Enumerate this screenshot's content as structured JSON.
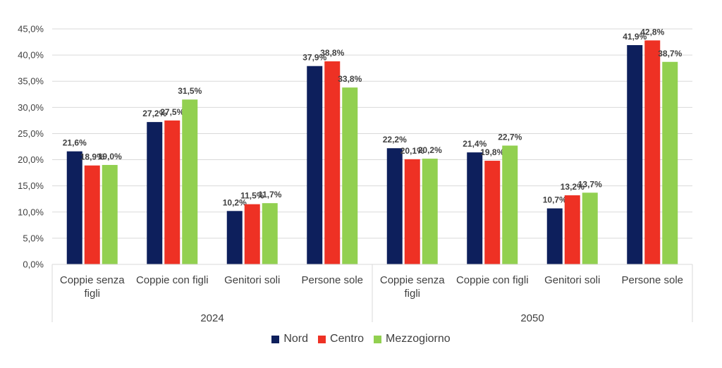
{
  "chart_data": {
    "type": "bar",
    "title": "",
    "xlabel": "",
    "ylabel": "",
    "ylim": [
      0,
      45
    ],
    "yticks": [
      "0,0%",
      "5,0%",
      "10,0%",
      "15,0%",
      "20,0%",
      "25,0%",
      "30,0%",
      "35,0%",
      "40,0%",
      "45,0%"
    ],
    "groups": [
      {
        "label": "2024",
        "categories": [
          "Coppie senza figli",
          "Coppie con figli",
          "Genitori soli",
          "Persone sole"
        ]
      },
      {
        "label": "2050",
        "categories": [
          "Coppie senza figli",
          "Coppie con figli",
          "Genitori soli",
          "Persone sole"
        ]
      }
    ],
    "category_lines": [
      [
        "Coppie senza",
        "figli"
      ],
      [
        "Coppie con figli"
      ],
      [
        "Genitori soli"
      ],
      [
        "Persone sole"
      ],
      [
        "Coppie senza",
        "figli"
      ],
      [
        "Coppie con figli"
      ],
      [
        "Genitori soli"
      ],
      [
        "Persone sole"
      ]
    ],
    "series": [
      {
        "name": "Nord",
        "color": "#0d1f5c",
        "values": [
          21.6,
          27.2,
          10.2,
          37.9,
          22.2,
          21.4,
          10.7,
          41.9
        ],
        "labels": [
          "21,6%",
          "27,2%",
          "10,2%",
          "37,9%",
          "22,2%",
          "21,4%",
          "10,7%",
          "41,9%"
        ]
      },
      {
        "name": "Centro",
        "color": "#ee3124",
        "values": [
          18.9,
          27.5,
          11.5,
          38.8,
          20.1,
          19.8,
          13.2,
          42.8
        ],
        "labels": [
          "18,9%",
          "27,5%",
          "11,5%",
          "38,8%",
          "20,1%",
          "19,8%",
          "13,2%",
          "42,8%"
        ]
      },
      {
        "name": "Mezzogiorno",
        "color": "#92d050",
        "values": [
          19.0,
          31.5,
          11.7,
          33.8,
          20.2,
          22.7,
          13.7,
          38.7
        ],
        "labels": [
          "19,0%",
          "31,5%",
          "11,7%",
          "33,8%",
          "20,2%",
          "22,7%",
          "13,7%",
          "38,7%"
        ]
      }
    ],
    "grid": true,
    "legend_position": "bottom"
  }
}
